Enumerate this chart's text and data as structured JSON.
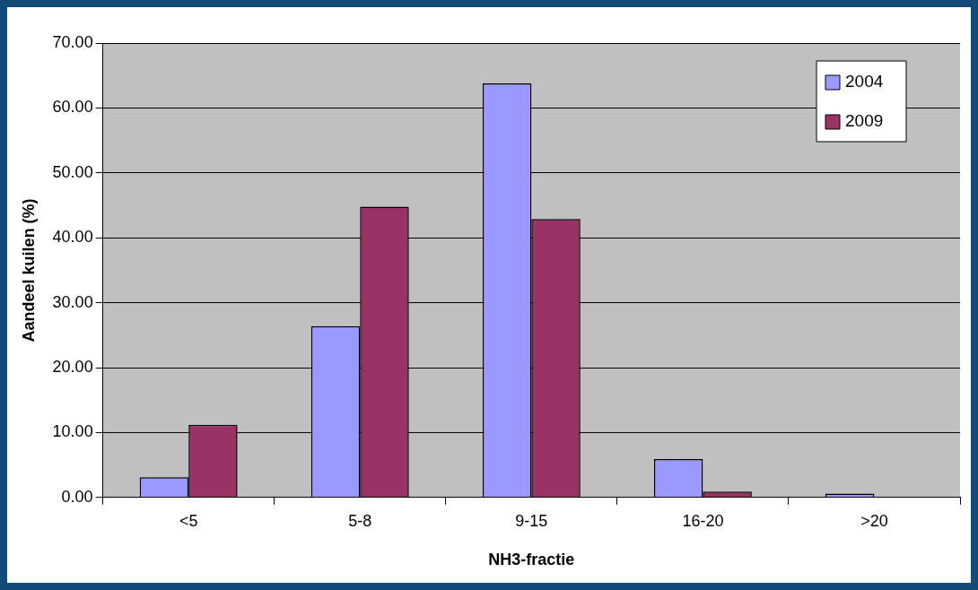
{
  "chart_data": {
    "type": "bar",
    "xlabel": "NH3-fractie",
    "ylabel": "Aandeel kuilen (%)",
    "categories": [
      "<5",
      "5-8",
      "9-15",
      "16-20",
      ">20"
    ],
    "series": [
      {
        "name": "2004",
        "color": "#9999ff",
        "values": [
          3.1,
          26.4,
          63.8,
          5.9,
          0.6
        ]
      },
      {
        "name": "2009",
        "color": "#993366",
        "values": [
          11.2,
          44.8,
          42.9,
          0.9,
          0
        ]
      }
    ],
    "ylim": [
      0,
      70
    ],
    "yticks": [
      {
        "value": 0,
        "label": "0.00"
      },
      {
        "value": 10,
        "label": "10.00"
      },
      {
        "value": 20,
        "label": "20.00"
      },
      {
        "value": 30,
        "label": "30.00"
      },
      {
        "value": 40,
        "label": "40.00"
      },
      {
        "value": 50,
        "label": "50.00"
      },
      {
        "value": 60,
        "label": "60.00"
      },
      {
        "value": 70,
        "label": "70.00"
      }
    ],
    "grid": "y",
    "legend": "top right"
  }
}
